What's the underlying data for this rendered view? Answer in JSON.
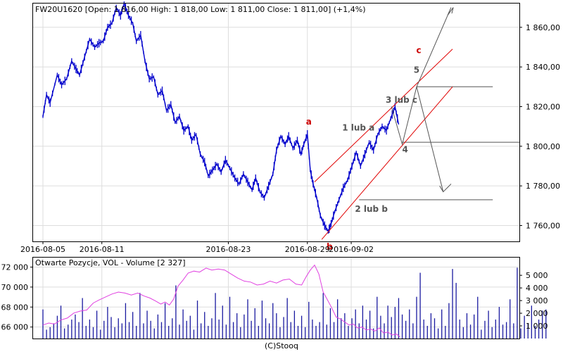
{
  "header": "FW20U1620 [Open: 1 816,00  High: 1 818,00  Low: 1 811,00  Close: 1 811,00] (+1,4%)",
  "volume_header": "Otwarte Pozycje, VOL - Volume [2 327]",
  "footer": "(C)Stooq",
  "colors": {
    "price": "#0000cc",
    "open_interest": "#e040e0",
    "volume": "#1a1aa0",
    "channel": "#e00000",
    "projection": "#555555",
    "wave_red": "#cc0000",
    "wave_gray": "#555555",
    "grid": "#dddddd"
  },
  "chart_data": [
    {
      "type": "line",
      "subtype": "ohlc-bars",
      "instrument": "FW20U1620",
      "x_tick_labels": [
        "2016-08-05",
        "2016-08-11",
        "2016-08-23",
        "2016-08-29",
        "2016-09-02"
      ],
      "y_tick_labels": [
        "1 760,00",
        "1 780,00",
        "1 800,00",
        "1 820,00",
        "1 840,00",
        "1 860,00"
      ],
      "y_ticks": [
        1760,
        1780,
        1800,
        1820,
        1840,
        1860
      ],
      "ylim": [
        1752,
        1872
      ],
      "grid": true,
      "price_path": [
        [
          0.0,
          1815
        ],
        [
          0.5,
          1826
        ],
        [
          1.0,
          1822
        ],
        [
          2.0,
          1836
        ],
        [
          2.6,
          1831
        ],
        [
          3.3,
          1834
        ],
        [
          4.0,
          1843
        ],
        [
          4.6,
          1839
        ],
        [
          5.1,
          1836
        ],
        [
          5.8,
          1845
        ],
        [
          6.5,
          1854
        ],
        [
          7.2,
          1850
        ],
        [
          7.8,
          1852
        ],
        [
          8.4,
          1853
        ],
        [
          9.0,
          1860
        ],
        [
          9.6,
          1862
        ],
        [
          10.2,
          1870
        ],
        [
          10.8,
          1866
        ],
        [
          11.3,
          1872
        ],
        [
          11.9,
          1866
        ],
        [
          12.5,
          1862
        ],
        [
          13.0,
          1853
        ],
        [
          13.6,
          1856
        ],
        [
          14.2,
          1843
        ],
        [
          14.8,
          1834
        ],
        [
          15.4,
          1835
        ],
        [
          16.0,
          1826
        ],
        [
          16.6,
          1828
        ],
        [
          17.2,
          1818
        ],
        [
          17.8,
          1821
        ],
        [
          18.4,
          1812
        ],
        [
          19.0,
          1815
        ],
        [
          19.6,
          1808
        ],
        [
          20.2,
          1810
        ],
        [
          20.7,
          1803
        ],
        [
          21.3,
          1806
        ],
        [
          21.9,
          1796
        ],
        [
          22.5,
          1792
        ],
        [
          23.0,
          1785
        ],
        [
          23.6,
          1788
        ],
        [
          24.2,
          1791
        ],
        [
          24.8,
          1787
        ],
        [
          25.4,
          1793
        ],
        [
          26.0,
          1789
        ],
        [
          26.7,
          1784
        ],
        [
          27.3,
          1781
        ],
        [
          27.9,
          1786
        ],
        [
          28.5,
          1782
        ],
        [
          29.1,
          1778
        ],
        [
          29.6,
          1784
        ],
        [
          30.2,
          1777
        ],
        [
          30.8,
          1774
        ],
        [
          31.4,
          1780
        ],
        [
          32.0,
          1786
        ],
        [
          32.5,
          1798
        ],
        [
          33.1,
          1805
        ],
        [
          33.7,
          1801
        ],
        [
          34.2,
          1805
        ],
        [
          34.8,
          1799
        ],
        [
          35.4,
          1803
        ],
        [
          35.9,
          1796
        ],
        [
          36.3,
          1801
        ],
        [
          36.8,
          1806
        ],
        [
          37.2,
          1788
        ],
        [
          37.6,
          1781
        ],
        [
          38.1,
          1774
        ],
        [
          38.6,
          1765
        ],
        [
          39.2,
          1760
        ],
        [
          39.7,
          1757
        ],
        [
          40.1,
          1761
        ],
        [
          40.6,
          1767
        ],
        [
          41.2,
          1773
        ],
        [
          41.8,
          1779
        ],
        [
          42.4,
          1783
        ],
        [
          43.0,
          1790
        ],
        [
          43.6,
          1797
        ],
        [
          44.2,
          1790
        ],
        [
          44.8,
          1796
        ],
        [
          45.4,
          1802
        ],
        [
          46.0,
          1798
        ],
        [
          46.6,
          1806
        ],
        [
          47.2,
          1810
        ],
        [
          47.8,
          1808
        ],
        [
          48.4,
          1814
        ],
        [
          49.0,
          1820
        ],
        [
          49.5,
          1811
        ]
      ],
      "annotations": [
        {
          "text": "a",
          "color": "red",
          "x": 37.0,
          "y": 1811
        },
        {
          "text": "b",
          "color": "red",
          "x": 39.9,
          "y": 1748
        },
        {
          "text": "c",
          "color": "red",
          "x": 52.3,
          "y": 1847
        },
        {
          "text": "1 lub a",
          "color": "gray",
          "x": 43.9,
          "y": 1808
        },
        {
          "text": "2 lub b",
          "color": "gray",
          "x": 45.7,
          "y": 1767
        },
        {
          "text": "3 lub c",
          "color": "gray",
          "x": 49.9,
          "y": 1822
        },
        {
          "text": "4",
          "color": "gray",
          "x": 50.4,
          "y": 1797
        },
        {
          "text": "5",
          "color": "gray",
          "x": 52.0,
          "y": 1837
        }
      ],
      "channel_lines": [
        [
          [
            37.8,
            1782
          ],
          [
            57.0,
            1849
          ]
        ],
        [
          [
            38.8,
            1753
          ],
          [
            57.0,
            1830
          ]
        ]
      ],
      "projection_lines": [
        [
          [
            48.5,
            1820
          ],
          [
            50.0,
            1801
          ],
          [
            52.0,
            1830
          ],
          [
            56.8,
            1870
          ],
          [
            56.3,
            1866
          ],
          [
            57.1,
            1870
          ],
          [
            56.9,
            1867
          ]
        ],
        [
          [
            52.0,
            1830
          ],
          [
            55.7,
            1777
          ],
          [
            55.2,
            1780
          ],
          [
            55.7,
            1777
          ],
          [
            56.8,
            1781
          ]
        ]
      ],
      "horizontal_levels": [
        {
          "y": 1830,
          "x_from": 52.0,
          "x_to": 62.6
        },
        {
          "y": 1802,
          "x_from": 50.0,
          "x_to": 66.3
        },
        {
          "y": 1773,
          "x_from": 44.0,
          "x_to": 62.6
        }
      ]
    },
    {
      "type": "bar",
      "title": "Otwarte Pozycje, VOL - Volume [2 327]",
      "left_axis_tick_labels": [
        "66 000",
        "68 000",
        "70 000",
        "72 000"
      ],
      "left_axis_ticks": [
        66000,
        68000,
        70000,
        72000
      ],
      "left_ylim": [
        64850,
        72950
      ],
      "right_axis_tick_labels": [
        "1 000",
        "2 000",
        "3 000",
        "4 000",
        "5 000"
      ],
      "right_axis_ticks": [
        1000,
        2000,
        3000,
        4000,
        5000
      ],
      "right_ylim": [
        0,
        6400
      ],
      "grid": true,
      "series": [
        {
          "name": "Otwarte Pozycje",
          "type": "line",
          "axis": "left",
          "points": [
            [
              0.0,
              66200
            ],
            [
              0.8,
              66400
            ],
            [
              1.6,
              66300
            ],
            [
              2.5,
              66700
            ],
            [
              3.4,
              66900
            ],
            [
              4.3,
              67400
            ],
            [
              5.2,
              67600
            ],
            [
              6.1,
              67700
            ],
            [
              7.0,
              68400
            ],
            [
              7.8,
              68700
            ],
            [
              8.7,
              69000
            ],
            [
              9.6,
              69300
            ],
            [
              10.5,
              69500
            ],
            [
              11.4,
              69400
            ],
            [
              12.3,
              69200
            ],
            [
              13.2,
              69400
            ],
            [
              14.1,
              69100
            ],
            [
              14.9,
              68900
            ],
            [
              15.7,
              68600
            ],
            [
              16.4,
              68300
            ],
            [
              17.0,
              68500
            ],
            [
              17.6,
              68200
            ],
            [
              18.2,
              68800
            ],
            [
              18.8,
              70100
            ],
            [
              19.5,
              70700
            ],
            [
              20.2,
              71400
            ],
            [
              21.0,
              71600
            ],
            [
              21.8,
              71500
            ],
            [
              22.7,
              71900
            ],
            [
              23.5,
              71700
            ],
            [
              24.4,
              71800
            ],
            [
              25.3,
              71700
            ],
            [
              26.2,
              71300
            ],
            [
              27.1,
              70900
            ],
            [
              28.0,
              70600
            ],
            [
              28.9,
              70500
            ],
            [
              29.8,
              70200
            ],
            [
              30.7,
              70300
            ],
            [
              31.6,
              70600
            ],
            [
              32.5,
              70400
            ],
            [
              33.4,
              70700
            ],
            [
              34.3,
              70800
            ],
            [
              35.2,
              70300
            ],
            [
              36.0,
              70200
            ],
            [
              36.6,
              71000
            ],
            [
              37.2,
              71700
            ],
            [
              37.8,
              72200
            ],
            [
              38.4,
              71300
            ],
            [
              39.0,
              69500
            ],
            [
              39.6,
              68700
            ],
            [
              40.2,
              67900
            ],
            [
              40.8,
              67000
            ],
            [
              41.4,
              66800
            ],
            [
              42.0,
              66500
            ],
            [
              42.6,
              66200
            ],
            [
              43.2,
              66300
            ],
            [
              43.8,
              65900
            ],
            [
              44.4,
              66000
            ],
            [
              45.0,
              65700
            ],
            [
              45.6,
              65800
            ],
            [
              46.2,
              65600
            ],
            [
              46.8,
              65900
            ],
            [
              47.4,
              65400
            ],
            [
              48.0,
              65500
            ],
            [
              48.6,
              65200
            ],
            [
              49.2,
              65300
            ],
            [
              49.7,
              65000
            ]
          ]
        },
        {
          "name": "VOL",
          "type": "bar",
          "axis": "right",
          "x_start": 0.0,
          "x_step": 0.5,
          "values": [
            2300,
            700,
            900,
            1200,
            1800,
            2600,
            800,
            1100,
            1500,
            1900,
            1300,
            3200,
            1000,
            1500,
            900,
            2200,
            700,
            1400,
            2500,
            1700,
            900,
            1600,
            1200,
            2800,
            1300,
            2100,
            1000,
            3600,
            1200,
            2200,
            1400,
            800,
            1900,
            1300,
            2800,
            1000,
            1600,
            4200,
            1100,
            2300,
            1400,
            1800,
            700,
            3000,
            1200,
            2100,
            1000,
            1600,
            3600,
            1500,
            2600,
            1100,
            3300,
            1300,
            2000,
            900,
            1900,
            3100,
            1400,
            2400,
            1000,
            3000,
            1600,
            1200,
            2800,
            2000,
            900,
            1700,
            3200,
            1300,
            2200,
            1000,
            1800,
            900,
            2900,
            1500,
            1000,
            1300,
            3600,
            1100,
            2400,
            1300,
            3100,
            1600,
            2000,
            1000,
            1600,
            2300,
            1200,
            2600,
            1500,
            2200,
            800,
            3300,
            1800,
            1200,
            2600,
            1700,
            2500,
            3200,
            1900,
            1400,
            2300,
            1200,
            3300,
            5200,
            1500,
            1000,
            2000,
            1600,
            800,
            2300,
            1000,
            2800,
            5500,
            4400,
            1500,
            900,
            2000,
            1100,
            1900,
            3300,
            700,
            1400,
            2200,
            900,
            1500,
            2500,
            1100,
            1300,
            3100,
            1200,
            5600,
            800,
            1800,
            1200,
            2600,
            1000,
            1500,
            2200,
            2300
          ]
        }
      ]
    }
  ]
}
